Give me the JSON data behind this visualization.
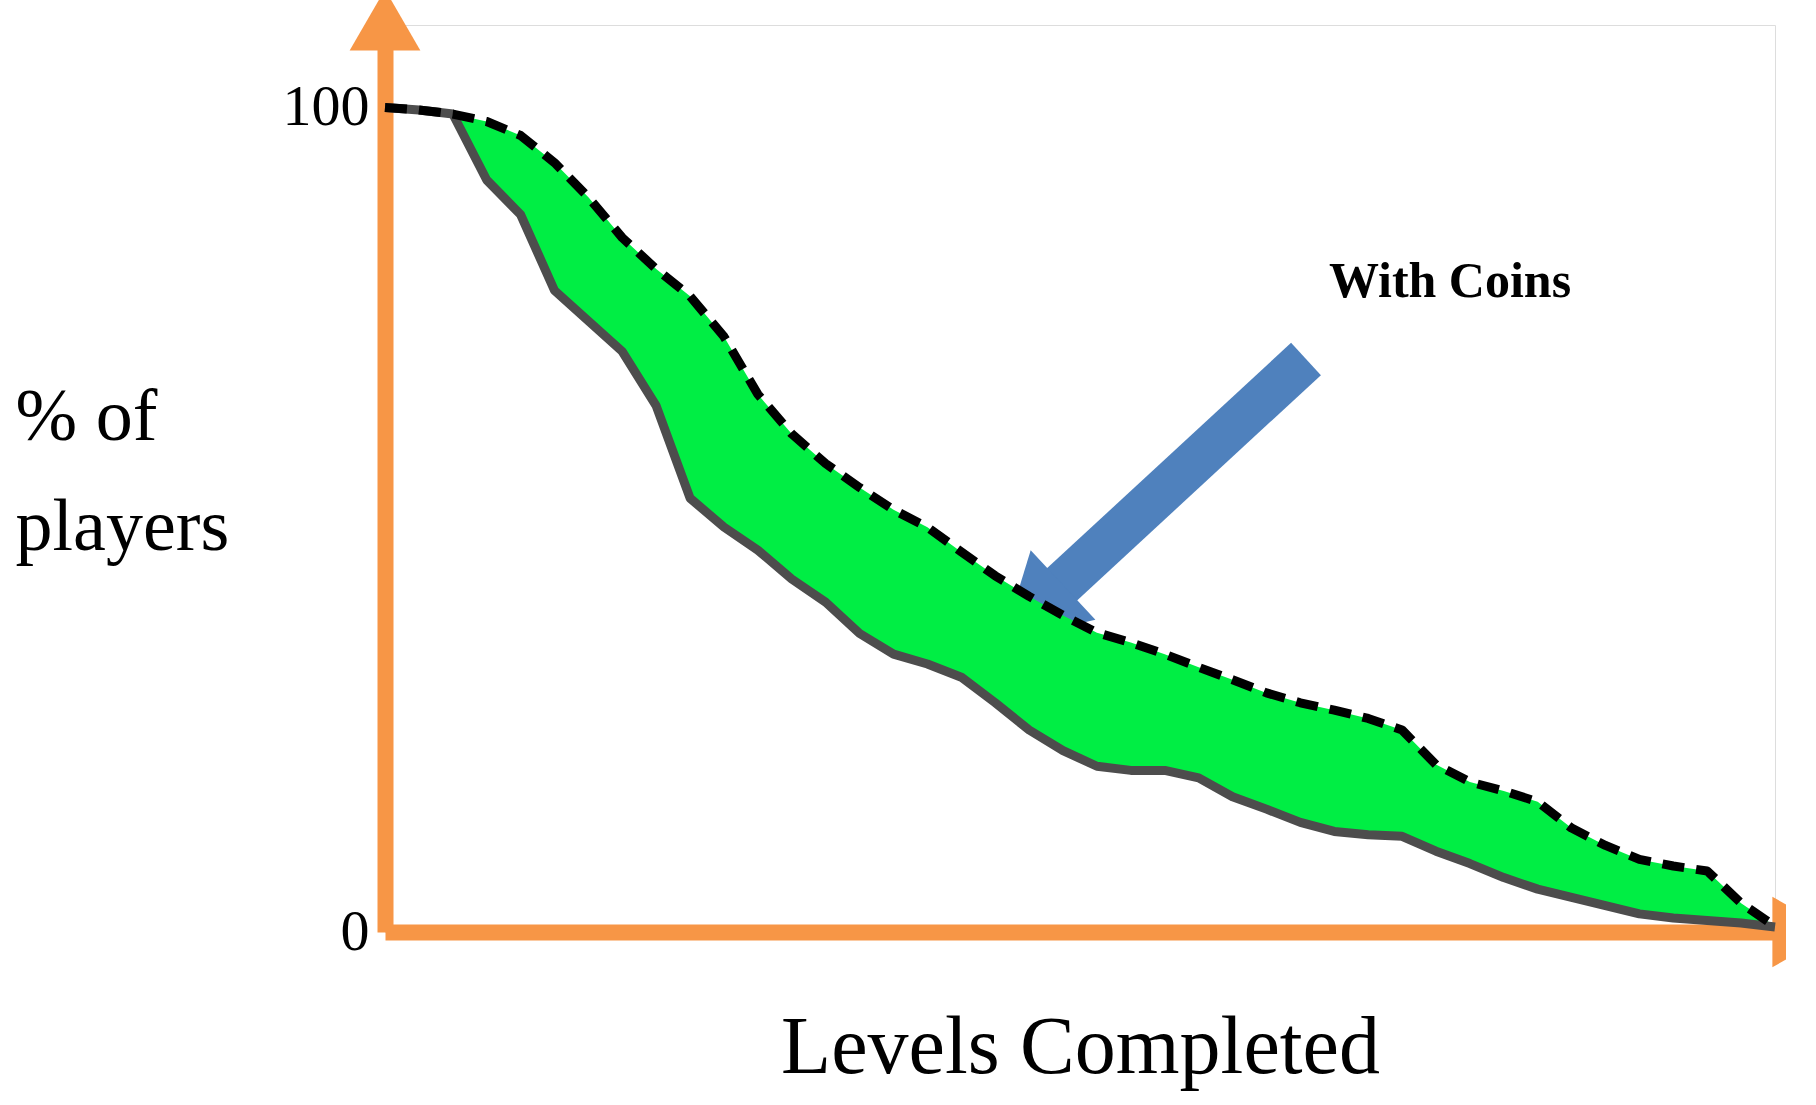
{
  "chart_data": {
    "type": "line",
    "ylabel": "% of players",
    "xlabel": "Levels Completed",
    "annotations": [
      "With Coins"
    ],
    "categories": [
      null,
      null,
      null,
      null,
      null,
      null,
      null,
      null,
      null,
      null,
      null,
      null,
      null,
      null,
      null,
      null,
      null,
      null,
      null,
      null,
      null,
      null,
      null,
      null,
      null,
      null,
      null,
      null,
      null,
      null,
      null,
      null,
      null,
      null,
      null,
      null,
      null,
      null,
      null,
      null,
      null,
      null
    ],
    "ylim": [
      0,
      110
    ],
    "yticks": [
      0,
      100
    ],
    "grid": false,
    "tick_labels": "y",
    "series": [
      {
        "color": "#000000",
        "line_style": "dashed",
        "values": [
          100,
          99.7,
          99.2,
          98.3,
          96.6,
          93.3,
          89.1,
          84.2,
          80.4,
          77.1,
          72.2,
          65.2,
          60.4,
          56.8,
          53.9,
          51.2,
          49.1,
          46.1,
          43.2,
          40.7,
          38.4,
          36.3,
          35.1,
          33.7,
          32.1,
          30.6,
          29.0,
          27.8,
          26.9,
          25.9,
          24.5,
          20.3,
          18.2,
          17.1,
          15.8,
          12.6,
          10.5,
          8.8,
          8.0,
          7.4,
          3.5,
          0.7
        ],
        "upper": [
          100,
          99.7,
          99.2,
          98.3,
          96.6,
          93.3,
          89.1,
          84.2,
          80.4,
          77.1,
          72.2,
          65.2,
          60.4,
          56.8,
          53.9,
          51.2,
          49.1,
          46.1,
          43.2,
          40.7,
          38.4,
          36.3,
          35.1,
          33.7,
          32.1,
          30.6,
          29.0,
          27.8,
          26.9,
          25.9,
          24.5,
          20.3,
          18.2,
          17.1,
          15.8,
          12.6,
          10.5,
          8.8,
          8.0,
          7.4,
          3.5,
          0.7
        ],
        "lower": [
          100,
          99.7,
          99.2,
          91.2,
          87.0,
          77.8,
          74.1,
          70.4,
          63.8,
          52.6,
          49.1,
          46.3,
          42.8,
          40.0,
          36.2,
          33.7,
          32.5,
          30.9,
          27.8,
          24.5,
          22.0,
          20.1,
          19.6,
          19.6,
          18.7,
          16.4,
          14.9,
          13.3,
          12.2,
          11.8,
          11.6,
          9.8,
          8.3,
          6.6,
          5.2,
          4.2,
          3.2,
          2.2,
          1.7,
          1.4,
          1.1,
          0.6
        ]
      }
    ]
  }
}
